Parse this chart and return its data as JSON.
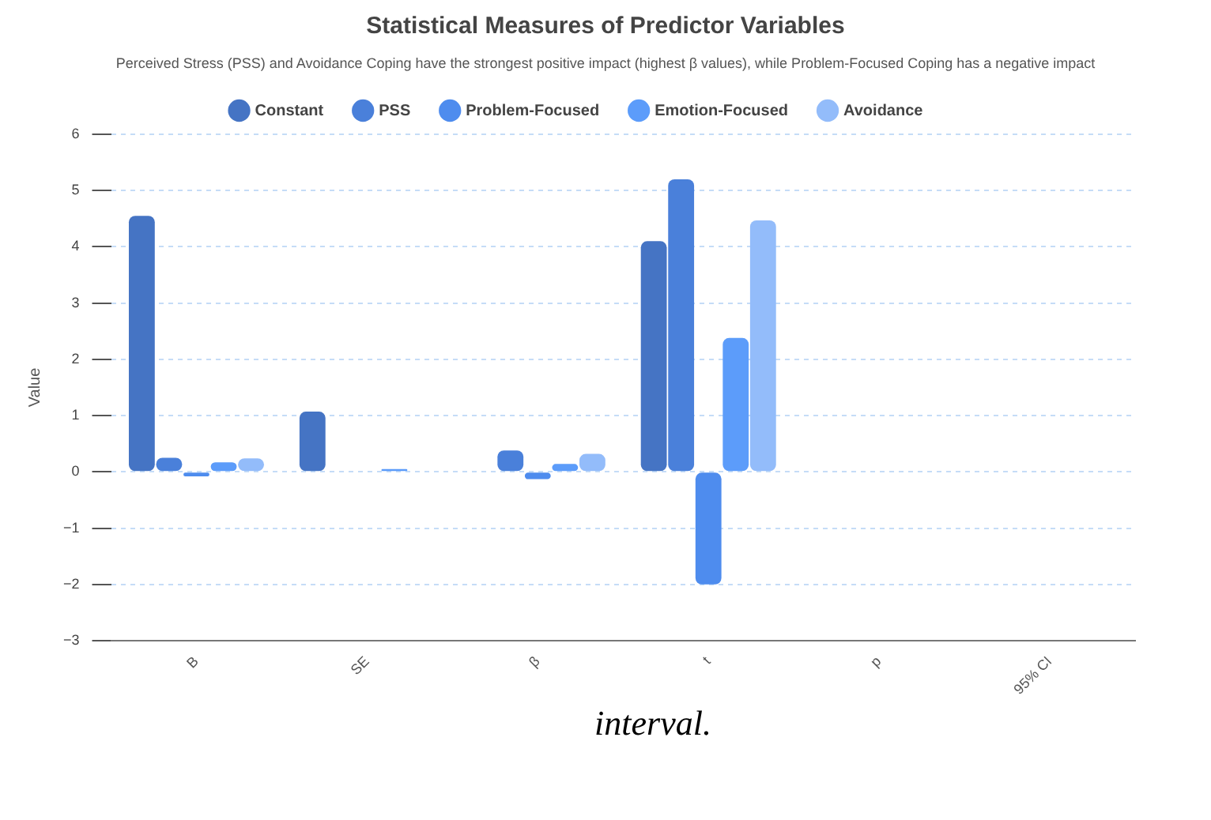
{
  "chart_data": {
    "type": "bar",
    "title": "Statistical Measures of Predictor Variables",
    "subtitle": "Perceived Stress (PSS) and Avoidance Coping have the strongest positive impact (highest β values), while Problem-Focused Coping has a negative impact",
    "categories": [
      "B",
      "SE",
      "β",
      "t",
      "p",
      "95% CI"
    ],
    "series": [
      {
        "name": "Constant",
        "color": "#4574c4",
        "values": [
          4.55,
          1.07,
          null,
          4.1,
          0,
          null
        ]
      },
      {
        "name": "PSS",
        "color": "#4a80da",
        "values": [
          0.25,
          null,
          0.38,
          5.2,
          null,
          null
        ]
      },
      {
        "name": "Problem-Focused",
        "color": "#4e8cee",
        "values": [
          -0.08,
          null,
          -0.13,
          -2.0,
          null,
          null
        ]
      },
      {
        "name": "Emotion-Focused",
        "color": "#5c9cfa",
        "values": [
          0.17,
          0.05,
          0.14,
          2.38,
          0,
          null
        ]
      },
      {
        "name": "Avoidance",
        "color": "#93bcfa",
        "values": [
          0.24,
          null,
          0.32,
          4.47,
          0,
          null
        ]
      }
    ],
    "ylabel": "Value",
    "ylim": [
      -3,
      6
    ],
    "yticks": [
      -3,
      -2,
      -1,
      0,
      1,
      2,
      3,
      4,
      5,
      6
    ],
    "grid": "y",
    "legend": "top",
    "annotations": [
      "interval."
    ]
  }
}
